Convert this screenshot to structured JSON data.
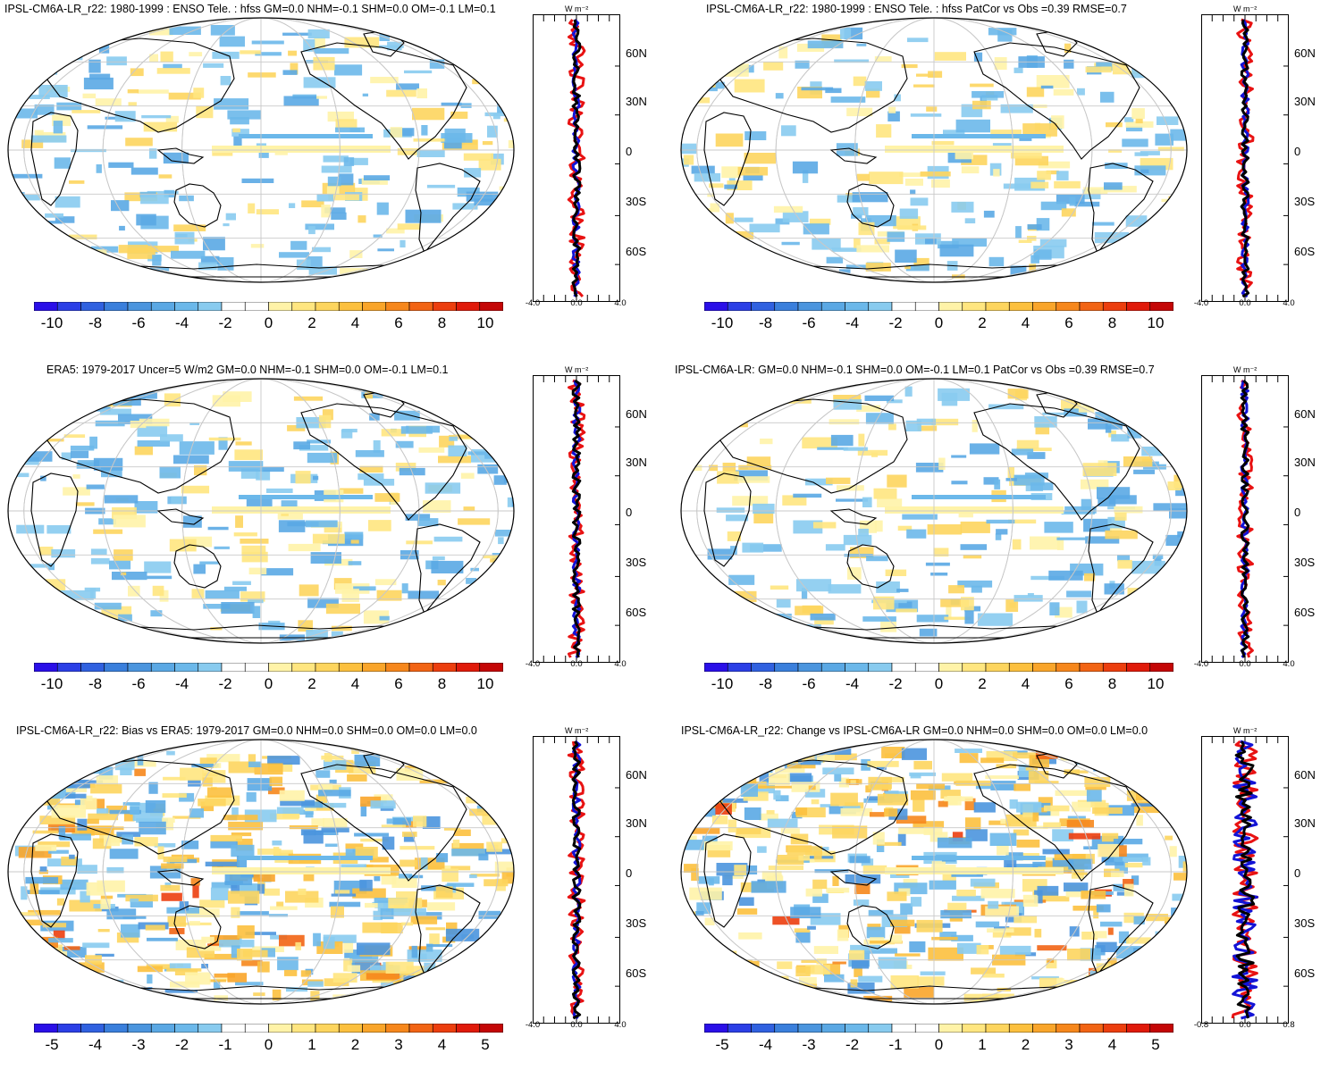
{
  "palette": [
    "#2a0fe8",
    "#2b3fe6",
    "#3061e0",
    "#3a7fdc",
    "#4b95de",
    "#5aa8e4",
    "#6bb8ea",
    "#88cbef",
    "#ffffff",
    "#ffffff",
    "#fff3a8",
    "#ffe680",
    "#fdd55e",
    "#fcc03e",
    "#f9a52a",
    "#f6871c",
    "#f26414",
    "#ec3e0e",
    "#e01a0a",
    "#c40606"
  ],
  "series_colors": {
    "model": "#e81212",
    "obs": "#1313d6",
    "diff": "#000000"
  },
  "panels": [
    {
      "title": "IPSL-CM6A-LR_r22: 1980-1999 : ENSO Tele. : hfss GM=0.0 NHM=-0.1 SHM=0.0 OM=-0.1 LM=0.1",
      "cbar_labels": [
        "-10",
        "-8",
        "-6",
        "-4",
        "-2",
        "0",
        "2",
        "4",
        "6",
        "8",
        "10"
      ],
      "zonal_ticks": [
        "-4.0",
        "0.0",
        "4.0"
      ],
      "lat_labels": [
        "60N",
        "30N",
        "0",
        "30S",
        "60S"
      ],
      "unit": "W m⁻²"
    },
    {
      "title": "IPSL-CM6A-LR_r22: 1980-1999 : ENSO Tele. : hfss PatCor vs Obs =0.39 RMSE=0.7",
      "cbar_labels": [
        "-10",
        "-8",
        "-6",
        "-4",
        "-2",
        "0",
        "2",
        "4",
        "6",
        "8",
        "10"
      ],
      "zonal_ticks": [
        "-4.0",
        "0.0",
        "4.0"
      ],
      "lat_labels": [
        "60N",
        "30N",
        "0",
        "30S",
        "60S"
      ],
      "unit": "W m⁻²"
    },
    {
      "title": "ERA5: 1979-2017 Uncer=5 W/m2 GM=0.0 NHM=-0.1 SHM=0.0 OM=-0.1 LM=0.1",
      "cbar_labels": [
        "-10",
        "-8",
        "-6",
        "-4",
        "-2",
        "0",
        "2",
        "4",
        "6",
        "8",
        "10"
      ],
      "zonal_ticks": [
        "-4.0",
        "0.0",
        "4.0"
      ],
      "lat_labels": [
        "60N",
        "30N",
        "0",
        "30S",
        "60S"
      ],
      "unit": "W m⁻²"
    },
    {
      "title": "IPSL-CM6A-LR: GM=0.0 NHM=-0.1 SHM=0.0 OM=-0.1 LM=0.1 PatCor vs Obs =0.39 RMSE=0.7",
      "cbar_labels": [
        "-10",
        "-8",
        "-6",
        "-4",
        "-2",
        "0",
        "2",
        "4",
        "6",
        "8",
        "10"
      ],
      "zonal_ticks": [
        "-4.0",
        "0.0",
        "4.0"
      ],
      "lat_labels": [
        "60N",
        "30N",
        "0",
        "30S",
        "60S"
      ],
      "unit": "W m⁻²"
    },
    {
      "title": "IPSL-CM6A-LR_r22: Bias vs ERA5: 1979-2017 GM=0.0 NHM=0.0 SHM=0.0 OM=0.0 LM=0.0",
      "cbar_labels": [
        "-5",
        "-4",
        "-3",
        "-2",
        "-1",
        "0",
        "1",
        "2",
        "3",
        "4",
        "5"
      ],
      "zonal_ticks": [
        "-4.0",
        "0.0",
        "4.0"
      ],
      "lat_labels": [
        "60N",
        "30N",
        "0",
        "30S",
        "60S"
      ],
      "unit": "W m⁻²"
    },
    {
      "title": "IPSL-CM6A-LR_r22: Change vs IPSL-CM6A-LR GM=0.0 NHM=0.0 SHM=0.0 OM=0.0 LM=0.0",
      "cbar_labels": [
        "-5",
        "-4",
        "-3",
        "-2",
        "-1",
        "0",
        "1",
        "2",
        "3",
        "4",
        "5"
      ],
      "zonal_ticks": [
        "-0.8",
        "0.0",
        "0.8"
      ],
      "lat_labels": [
        "60N",
        "30N",
        "0",
        "30S",
        "60S"
      ],
      "unit": "W m⁻²"
    }
  ]
}
